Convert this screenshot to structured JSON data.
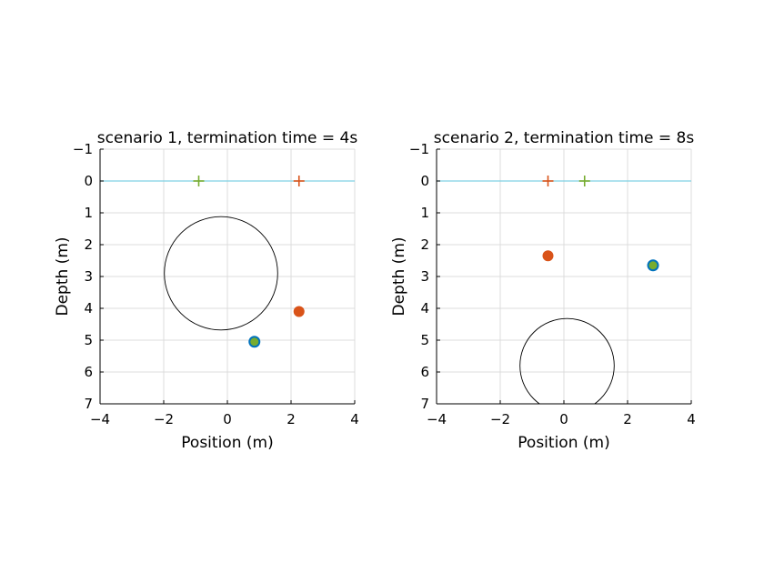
{
  "chart_data": [
    {
      "type": "scatter",
      "title": "scenario 1, termination time = 4s",
      "xlabel": "Position (m)",
      "ylabel": "Depth (m)",
      "xlim": [
        -4,
        4
      ],
      "ylim": [
        -1,
        7
      ],
      "y_reversed": true,
      "grid": true,
      "xticks": [
        -4,
        -2,
        0,
        2,
        4
      ],
      "yticks": [
        -1,
        0,
        1,
        2,
        3,
        4,
        5,
        6,
        7
      ],
      "surface_line": {
        "y": 0,
        "color": "#7fd1e3"
      },
      "circle": {
        "center": [
          -0.2,
          2.9
        ],
        "radius": 1.78,
        "color": "#000000"
      },
      "markers": [
        {
          "kind": "plus",
          "x": -0.9,
          "y": 0,
          "color": "#77ac30"
        },
        {
          "kind": "plus",
          "x": 2.25,
          "y": 0,
          "color": "#d95319"
        },
        {
          "kind": "dot",
          "x": 2.25,
          "y": 4.1,
          "color": "#d95319"
        },
        {
          "kind": "ringed-dot",
          "x": 0.85,
          "y": 5.05,
          "color": "#77ac30",
          "edge": "#0072bd"
        }
      ]
    },
    {
      "type": "scatter",
      "title": "scenario 2, termination time = 8s",
      "xlabel": "Position (m)",
      "ylabel": "Depth (m)",
      "xlim": [
        -4,
        4
      ],
      "ylim": [
        -1,
        7
      ],
      "y_reversed": true,
      "grid": true,
      "xticks": [
        -4,
        -2,
        0,
        2,
        4
      ],
      "yticks": [
        -1,
        0,
        1,
        2,
        3,
        4,
        5,
        6,
        7
      ],
      "surface_line": {
        "y": 0,
        "color": "#7fd1e3"
      },
      "circle": {
        "center": [
          0.1,
          5.8
        ],
        "radius": 1.48,
        "color": "#000000"
      },
      "markers": [
        {
          "kind": "plus",
          "x": -0.5,
          "y": 0,
          "color": "#d95319"
        },
        {
          "kind": "plus",
          "x": 0.65,
          "y": 0,
          "color": "#77ac30"
        },
        {
          "kind": "dot",
          "x": -0.5,
          "y": 2.35,
          "color": "#d95319"
        },
        {
          "kind": "ringed-dot",
          "x": 2.8,
          "y": 2.65,
          "color": "#77ac30",
          "edge": "#0072bd"
        }
      ]
    }
  ]
}
